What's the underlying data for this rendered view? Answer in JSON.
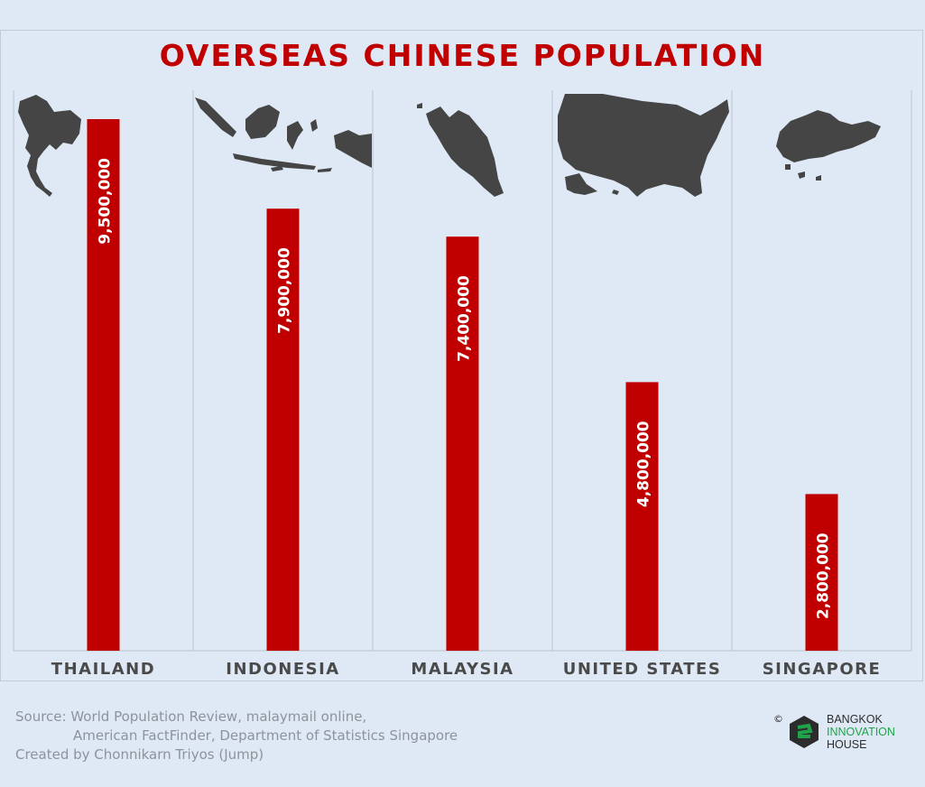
{
  "chart_data": {
    "type": "bar",
    "title": "OVERSEAS CHINESE POPULATION",
    "categories": [
      "THAILAND",
      "INDONESIA",
      "MALAYSIA",
      "UNITED STATES",
      "SINGAPORE"
    ],
    "values": [
      9500000,
      7900000,
      7400000,
      4800000,
      2800000
    ],
    "data_labels": [
      "9,500,000",
      "7,900,000",
      "7,400,000",
      "4,800,000",
      "2,800,000"
    ],
    "xlabel": "",
    "ylabel": "",
    "ylim": [
      0,
      9500000
    ],
    "grid": false,
    "legend": "none",
    "bar_color": "#c00000"
  },
  "footer": {
    "source_line1": "Source: World Population Review, malaymail online,",
    "source_line2": "American FactFinder, Department of Statistics Singapore",
    "credit": "Created by Chonnikarn Triyos (Jump)"
  },
  "logo": {
    "copyright": "©",
    "line1": "BANGKOK",
    "line2": "INNOVATION",
    "line3": "HOUSE",
    "accent_color": "#1fa34a"
  },
  "colors": {
    "background": "#dfe9f5",
    "title": "#c00000",
    "bar": "#c00000",
    "map": "#454545",
    "category_label": "#4a4a4a"
  }
}
